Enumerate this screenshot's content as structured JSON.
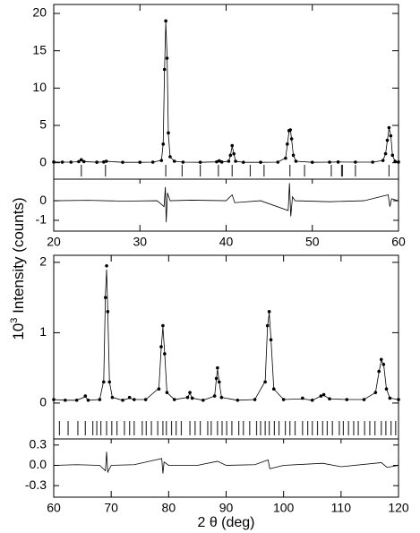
{
  "ylabel": {
    "base": "10",
    "sup": "3",
    "rest": " Intensity (counts)"
  },
  "chart_data": [
    {
      "type": "line",
      "color": "#000000",
      "xlim": [
        20,
        60
      ],
      "xticks": [
        20,
        30,
        40,
        50,
        60
      ],
      "ylim": [
        -2.2,
        21.2
      ],
      "yticks": [
        0,
        5,
        10,
        15,
        20
      ],
      "diff_ylim": [
        -1.55,
        1.1
      ],
      "diff_yticks": [
        -1,
        0
      ],
      "x": [
        20,
        21,
        22,
        22.9,
        23.2,
        23.5,
        25,
        25.8,
        26.1,
        28,
        30,
        31.5,
        32.5,
        32.7,
        32.85,
        33.0,
        33.15,
        33.3,
        33.5,
        34,
        35,
        37,
        38.9,
        39.2,
        39.5,
        40.3,
        40.5,
        40.7,
        40.9,
        41.1,
        42,
        44,
        46,
        46.9,
        47.1,
        47.3,
        47.45,
        47.6,
        47.8,
        48.1,
        50,
        52,
        53,
        55,
        57,
        58.2,
        58.5,
        58.7,
        58.9,
        59.1,
        59.3,
        59.6,
        60
      ],
      "observed": [
        0.1,
        0.08,
        0.08,
        0.15,
        0.4,
        0.15,
        0.07,
        0.1,
        0.2,
        0.06,
        0.06,
        0.08,
        0.3,
        2.5,
        12.5,
        19.0,
        14.0,
        4.0,
        0.8,
        0.2,
        0.08,
        0.06,
        0.12,
        0.25,
        0.1,
        0.2,
        1.0,
        2.3,
        1.2,
        0.2,
        0.06,
        0.06,
        0.08,
        0.6,
        2.5,
        4.3,
        4.4,
        3.2,
        1.0,
        0.2,
        0.06,
        0.08,
        0.1,
        0.08,
        0.08,
        0.3,
        1.2,
        3.0,
        4.7,
        3.6,
        1.0,
        0.2,
        0.1
      ],
      "calculated": [
        0.1,
        0.08,
        0.08,
        0.14,
        0.38,
        0.15,
        0.07,
        0.1,
        0.19,
        0.06,
        0.06,
        0.08,
        0.32,
        2.6,
        12.2,
        18.8,
        14.3,
        3.8,
        0.8,
        0.2,
        0.08,
        0.06,
        0.12,
        0.24,
        0.1,
        0.2,
        1.0,
        2.2,
        1.2,
        0.2,
        0.06,
        0.06,
        0.08,
        0.65,
        2.4,
        4.2,
        4.5,
        3.1,
        1.0,
        0.2,
        0.06,
        0.08,
        0.1,
        0.08,
        0.08,
        0.3,
        1.2,
        2.9,
        4.6,
        3.7,
        1.0,
        0.2,
        0.1
      ],
      "diff_x": [
        20,
        24,
        28,
        32,
        32.8,
        32.95,
        33.05,
        33.2,
        33.5,
        36,
        40,
        40.7,
        41,
        44,
        47.2,
        47.35,
        47.5,
        47.7,
        48,
        52,
        56,
        58.8,
        59.0,
        59.2,
        60
      ],
      "difference": [
        0,
        0.02,
        -0.02,
        0,
        -0.3,
        0.7,
        -1.1,
        0.4,
        0,
        0.03,
        0,
        0.3,
        -0.1,
        0,
        -0.5,
        0.9,
        -0.8,
        0.2,
        0,
        -0.05,
        0,
        0.3,
        -0.3,
        0.1,
        0
      ],
      "reflections": [
        23.2,
        26.0,
        33.0,
        34.9,
        37.0,
        39.1,
        40.7,
        42.8,
        44.4,
        47.4,
        49.1,
        52.2,
        53.4,
        53.5,
        55.0,
        58.9
      ]
    },
    {
      "type": "line",
      "color": "#000000",
      "xlabel": "2 θ (deg)",
      "xlim": [
        60,
        120
      ],
      "xticks": [
        60,
        70,
        80,
        90,
        100,
        110,
        120
      ],
      "ylim": [
        -0.51,
        2.1
      ],
      "yticks": [
        0,
        1,
        2
      ],
      "diff_ylim": [
        -0.47,
        0.39
      ],
      "diff_yticks": [
        -0.3,
        {
          "value": 0,
          "label": "0.0"
        },
        0.3
      ],
      "x": [
        60,
        62,
        64,
        65.5,
        66,
        68,
        68.7,
        69.0,
        69.2,
        69.4,
        69.7,
        70.2,
        72,
        73.2,
        74,
        76,
        78.3,
        78.7,
        79.0,
        79.3,
        79.7,
        81,
        83.3,
        83.7,
        84.1,
        86,
        88,
        88.3,
        88.5,
        88.8,
        89.2,
        92,
        95,
        96.8,
        97.2,
        97.5,
        97.8,
        98.3,
        100,
        103.3,
        105,
        106.5,
        107,
        108,
        111,
        114,
        116,
        116.6,
        117.0,
        117.4,
        117.9,
        118.5,
        120
      ],
      "observed": [
        0.05,
        0.04,
        0.04,
        0.1,
        0.04,
        0.05,
        0.3,
        1.5,
        1.95,
        1.3,
        0.3,
        0.08,
        0.04,
        0.08,
        0.05,
        0.05,
        0.2,
        0.8,
        1.1,
        0.7,
        0.15,
        0.05,
        0.08,
        0.15,
        0.07,
        0.04,
        0.1,
        0.35,
        0.5,
        0.3,
        0.08,
        0.04,
        0.05,
        0.3,
        1.1,
        1.3,
        0.9,
        0.2,
        0.05,
        0.07,
        0.04,
        0.1,
        0.12,
        0.06,
        0.05,
        0.05,
        0.15,
        0.45,
        0.62,
        0.55,
        0.2,
        0.07,
        0.05
      ],
      "calculated": [
        0.05,
        0.04,
        0.04,
        0.09,
        0.04,
        0.05,
        0.32,
        1.55,
        1.9,
        1.32,
        0.3,
        0.08,
        0.04,
        0.07,
        0.05,
        0.05,
        0.21,
        0.78,
        1.08,
        0.72,
        0.15,
        0.05,
        0.08,
        0.14,
        0.07,
        0.04,
        0.1,
        0.34,
        0.48,
        0.3,
        0.08,
        0.04,
        0.05,
        0.31,
        1.08,
        1.28,
        0.92,
        0.2,
        0.05,
        0.06,
        0.04,
        0.1,
        0.11,
        0.06,
        0.05,
        0.05,
        0.15,
        0.44,
        0.6,
        0.56,
        0.2,
        0.07,
        0.05
      ],
      "diff_x": [
        60,
        64,
        68,
        69.0,
        69.2,
        69.4,
        70,
        74,
        78.8,
        79.0,
        79.2,
        80,
        85,
        88.5,
        90,
        95,
        97.3,
        97.6,
        100,
        106.8,
        110,
        117,
        118,
        120
      ],
      "difference": [
        0,
        0.01,
        0,
        -0.08,
        0.2,
        -0.1,
        0,
        0.01,
        0.1,
        -0.12,
        0.05,
        0,
        0,
        0.06,
        0,
        0.01,
        0.08,
        -0.05,
        0,
        0.03,
        -0.02,
        0.04,
        -0.03,
        0
      ],
      "reflections": [
        61,
        62.5,
        64.2,
        65.5,
        66.8,
        67.5,
        68.2,
        69.2,
        70.1,
        71,
        72.3,
        73.2,
        74,
        75.4,
        76.1,
        77,
        78.1,
        79,
        79.6,
        80.5,
        81.3,
        82.2,
        83.7,
        84.6,
        85.5,
        86.8,
        87.4,
        88.5,
        89.3,
        90.1,
        91,
        92.2,
        93,
        94.1,
        95.3,
        96,
        96.8,
        97.5,
        98.4,
        99.2,
        100.3,
        101.1,
        102,
        103.3,
        104.2,
        105,
        105.9,
        106.8,
        107.6,
        108.5,
        109.7,
        110.4,
        111.3,
        112.2,
        113,
        114.1,
        115,
        115.9,
        117,
        117.8,
        118.7,
        119.5
      ]
    }
  ]
}
